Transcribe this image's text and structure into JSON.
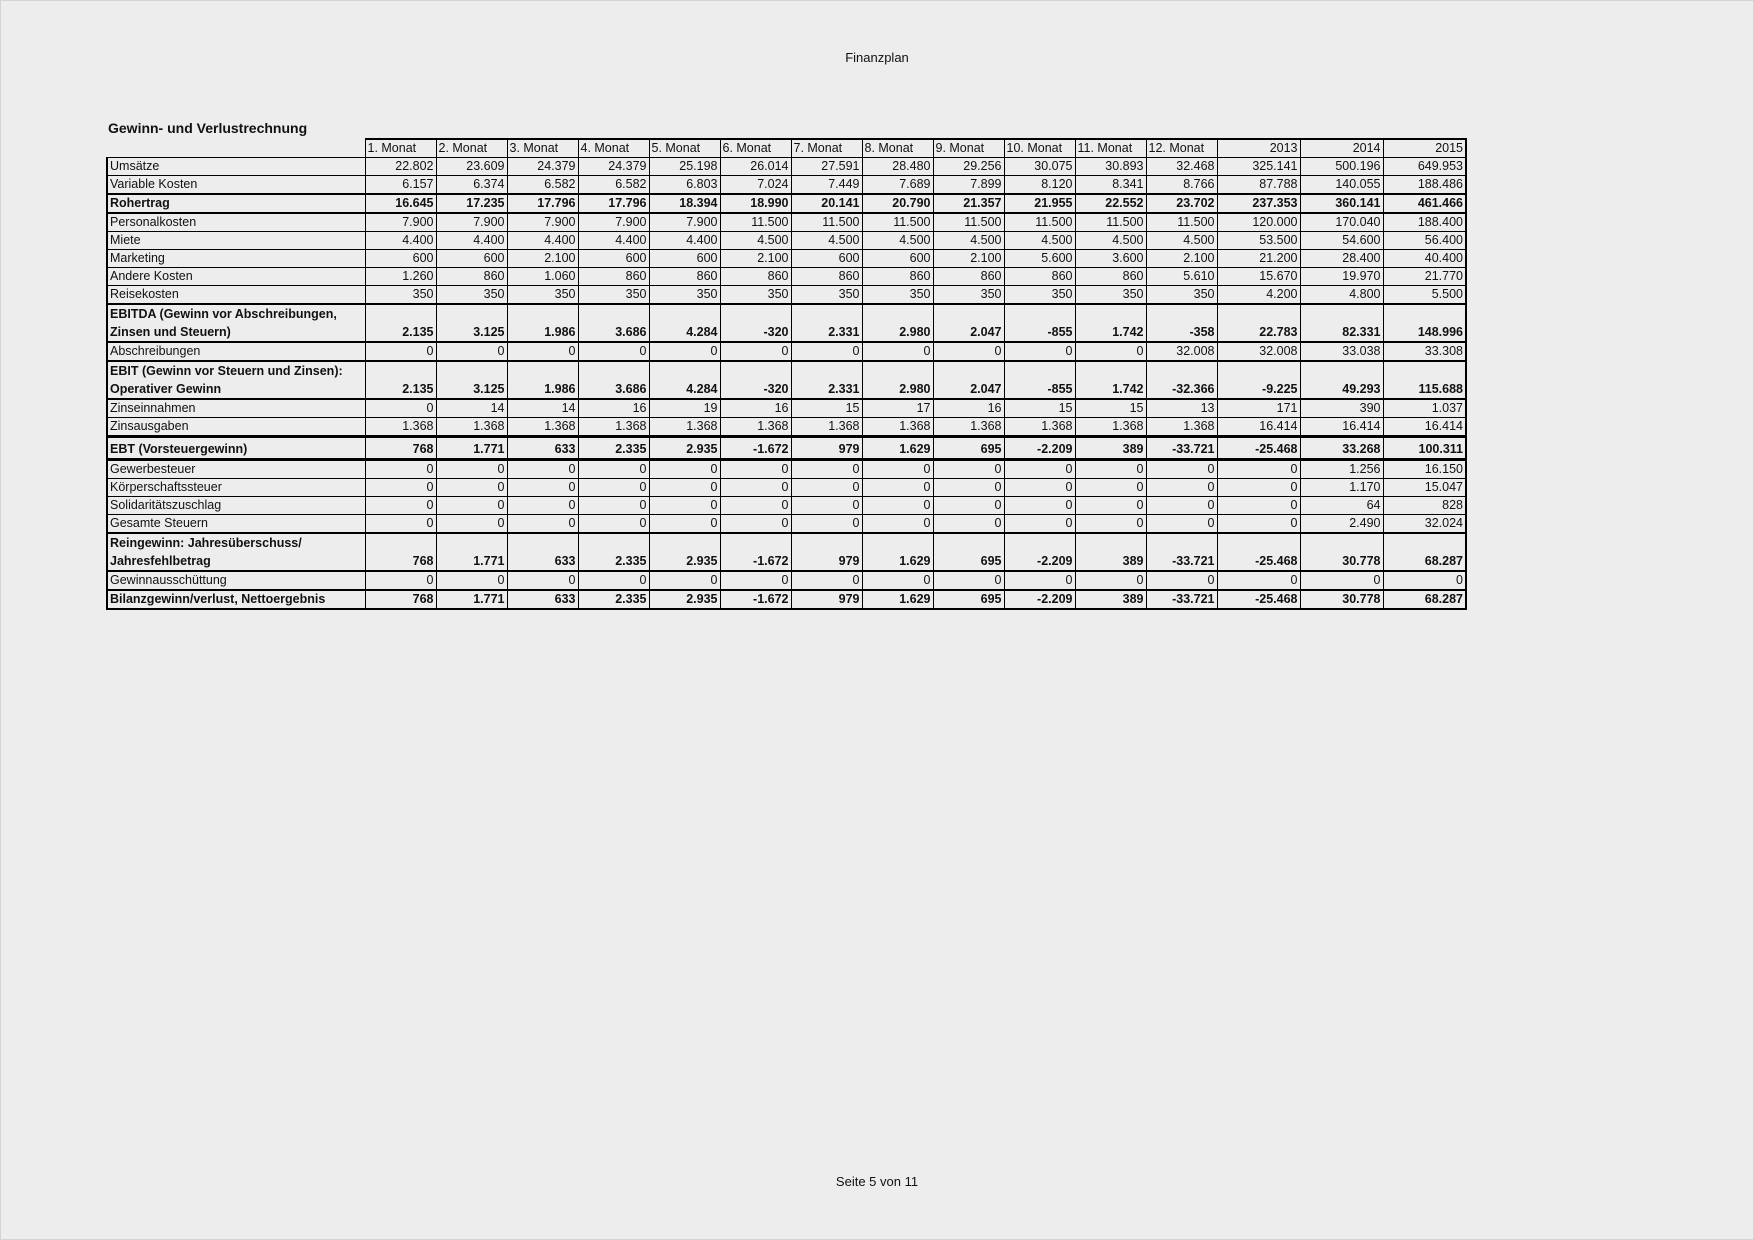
{
  "document": {
    "title": "Finanzplan",
    "section_title": "Gewinn- und Verlustrechnung",
    "footer": "Seite 5 von 11"
  },
  "table": {
    "headers": [
      "1. Monat",
      "2. Monat",
      "3. Monat",
      "4. Monat",
      "5. Monat",
      "6. Monat",
      "7. Monat",
      "8. Monat",
      "9. Monat",
      "10. Monat",
      "11. Monat",
      "12. Monat",
      "2013",
      "2014",
      "2015"
    ],
    "rows": [
      {
        "label": "Umsätze",
        "style": "",
        "values": [
          "22.802",
          "23.609",
          "24.379",
          "24.379",
          "25.198",
          "26.014",
          "27.591",
          "28.480",
          "29.256",
          "30.075",
          "30.893",
          "32.468",
          "325.141",
          "500.196",
          "649.953"
        ]
      },
      {
        "label": "Variable Kosten",
        "style": "",
        "values": [
          "6.157",
          "6.374",
          "6.582",
          "6.582",
          "6.803",
          "7.024",
          "7.449",
          "7.689",
          "7.899",
          "8.120",
          "8.341",
          "8.766",
          "87.788",
          "140.055",
          "188.486"
        ]
      },
      {
        "label": "Rohertrag",
        "style": "bold",
        "values": [
          "16.645",
          "17.235",
          "17.796",
          "17.796",
          "18.394",
          "18.990",
          "20.141",
          "20.790",
          "21.357",
          "21.955",
          "22.552",
          "23.702",
          "237.353",
          "360.141",
          "461.466"
        ]
      },
      {
        "label": "Personalkosten",
        "style": "",
        "values": [
          "7.900",
          "7.900",
          "7.900",
          "7.900",
          "7.900",
          "11.500",
          "11.500",
          "11.500",
          "11.500",
          "11.500",
          "11.500",
          "11.500",
          "120.000",
          "170.040",
          "188.400"
        ]
      },
      {
        "label": "Miete",
        "style": "",
        "values": [
          "4.400",
          "4.400",
          "4.400",
          "4.400",
          "4.400",
          "4.500",
          "4.500",
          "4.500",
          "4.500",
          "4.500",
          "4.500",
          "4.500",
          "53.500",
          "54.600",
          "56.400"
        ]
      },
      {
        "label": "Marketing",
        "style": "",
        "values": [
          "600",
          "600",
          "2.100",
          "600",
          "600",
          "2.100",
          "600",
          "600",
          "2.100",
          "5.600",
          "3.600",
          "2.100",
          "21.200",
          "28.400",
          "40.400"
        ]
      },
      {
        "label": "Andere Kosten",
        "style": "",
        "values": [
          "1.260",
          "860",
          "1.060",
          "860",
          "860",
          "860",
          "860",
          "860",
          "860",
          "860",
          "860",
          "5.610",
          "15.670",
          "19.970",
          "21.770"
        ]
      },
      {
        "label": "Reisekosten",
        "style": "",
        "values": [
          "350",
          "350",
          "350",
          "350",
          "350",
          "350",
          "350",
          "350",
          "350",
          "350",
          "350",
          "350",
          "4.200",
          "4.800",
          "5.500"
        ]
      },
      {
        "label": "EBITDA (Gewinn vor Abschreibungen, Zinsen und Steuern)",
        "style": "bold two",
        "values": [
          "2.135",
          "3.125",
          "1.986",
          "3.686",
          "4.284",
          "-320",
          "2.331",
          "2.980",
          "2.047",
          "-855",
          "1.742",
          "-358",
          "22.783",
          "82.331",
          "148.996"
        ]
      },
      {
        "label": "Abschreibungen",
        "style": "",
        "values": [
          "0",
          "0",
          "0",
          "0",
          "0",
          "0",
          "0",
          "0",
          "0",
          "0",
          "0",
          "32.008",
          "32.008",
          "33.038",
          "33.308"
        ]
      },
      {
        "label": "EBIT (Gewinn vor Steuern und Zinsen): Operativer Gewinn",
        "style": "bold two",
        "values": [
          "2.135",
          "3.125",
          "1.986",
          "3.686",
          "4.284",
          "-320",
          "2.331",
          "2.980",
          "2.047",
          "-855",
          "1.742",
          "-32.366",
          "-9.225",
          "49.293",
          "115.688"
        ]
      },
      {
        "label": "Zinseinnahmen",
        "style": "",
        "values": [
          "0",
          "14",
          "14",
          "16",
          "19",
          "16",
          "15",
          "17",
          "16",
          "15",
          "15",
          "13",
          "171",
          "390",
          "1.037"
        ]
      },
      {
        "label": "Zinsausgaben",
        "style": "",
        "values": [
          "1.368",
          "1.368",
          "1.368",
          "1.368",
          "1.368",
          "1.368",
          "1.368",
          "1.368",
          "1.368",
          "1.368",
          "1.368",
          "1.368",
          "16.414",
          "16.414",
          "16.414"
        ]
      },
      {
        "label": "EBT (Vorsteuergewinn)",
        "style": "bold box",
        "values": [
          "768",
          "1.771",
          "633",
          "2.335",
          "2.935",
          "-1.672",
          "979",
          "1.629",
          "695",
          "-2.209",
          "389",
          "-33.721",
          "-25.468",
          "33.268",
          "100.311"
        ]
      },
      {
        "label": "Gewerbesteuer",
        "style": "",
        "values": [
          "0",
          "0",
          "0",
          "0",
          "0",
          "0",
          "0",
          "0",
          "0",
          "0",
          "0",
          "0",
          "0",
          "1.256",
          "16.150"
        ]
      },
      {
        "label": "Körperschaftssteuer",
        "style": "",
        "values": [
          "0",
          "0",
          "0",
          "0",
          "0",
          "0",
          "0",
          "0",
          "0",
          "0",
          "0",
          "0",
          "0",
          "1.170",
          "15.047"
        ]
      },
      {
        "label": "Solidaritätszuschlag",
        "style": "",
        "values": [
          "0",
          "0",
          "0",
          "0",
          "0",
          "0",
          "0",
          "0",
          "0",
          "0",
          "0",
          "0",
          "0",
          "64",
          "828"
        ]
      },
      {
        "label": "Gesamte Steuern",
        "style": "",
        "values": [
          "0",
          "0",
          "0",
          "0",
          "0",
          "0",
          "0",
          "0",
          "0",
          "0",
          "0",
          "0",
          "0",
          "2.490",
          "32.024"
        ]
      },
      {
        "label": "Reingewinn: Jahresüberschuss/ Jahresfehlbetrag",
        "style": "bold two",
        "values": [
          "768",
          "1.771",
          "633",
          "2.335",
          "2.935",
          "-1.672",
          "979",
          "1.629",
          "695",
          "-2.209",
          "389",
          "-33.721",
          "-25.468",
          "30.778",
          "68.287"
        ]
      },
      {
        "label": "Gewinnausschüttung",
        "style": "",
        "values": [
          "0",
          "0",
          "0",
          "0",
          "0",
          "0",
          "0",
          "0",
          "0",
          "0",
          "0",
          "0",
          "0",
          "0",
          "0"
        ]
      },
      {
        "label": "Bilanzgewinn/verlust, Nettoergebnis",
        "style": "bold",
        "values": [
          "768",
          "1.771",
          "633",
          "2.335",
          "2.935",
          "-1.672",
          "979",
          "1.629",
          "695",
          "-2.209",
          "389",
          "-33.721",
          "-25.468",
          "30.778",
          "68.287"
        ]
      }
    ]
  }
}
